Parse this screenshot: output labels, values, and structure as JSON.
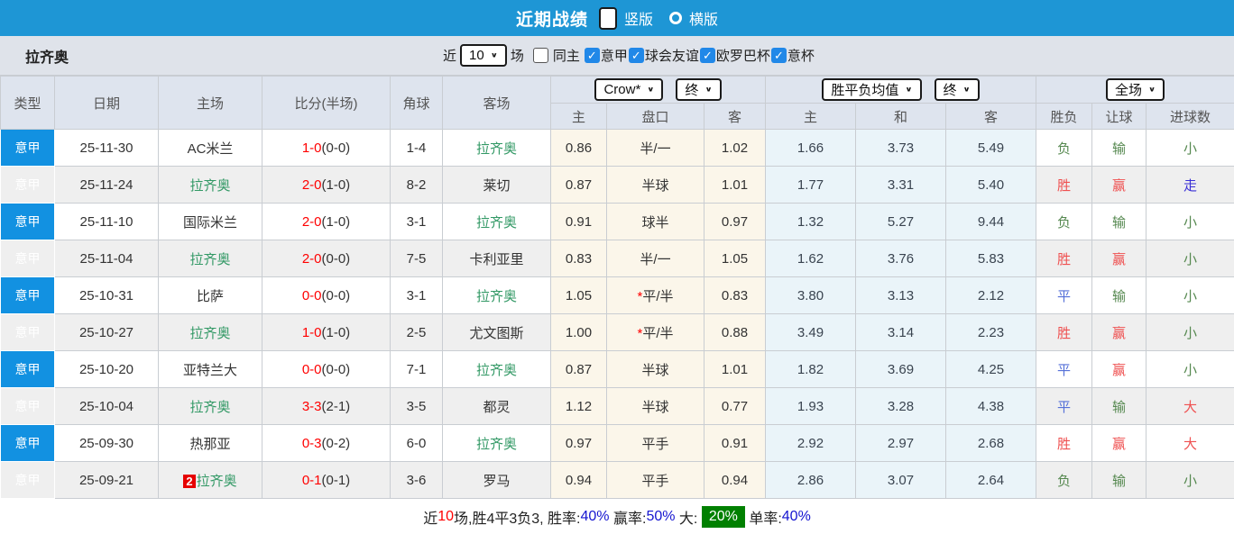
{
  "colors": {
    "topbar_blue": "#1e96d5",
    "type_column_blue": "#1291e1",
    "checkbox_blue": "#2188e8",
    "team_green": "#339966",
    "score_red": "#ff0000",
    "result_red": "#ef5050",
    "result_green": "#55884f",
    "result_blue": "#5570d8",
    "walk_blue": "#3a2fd6",
    "crown_col_bg": "#fbf6ea",
    "euro_col_bg": "#eaf4f9",
    "summary_badge_green": "#008000"
  },
  "title_bar": {
    "title": "近期战绩",
    "options": [
      {
        "label": "竖版",
        "selected": true
      },
      {
        "label": "横版",
        "selected": false
      }
    ]
  },
  "filter": {
    "team": "拉齐奥",
    "recent_label": "近",
    "recent_value": "10",
    "games_label": "场",
    "same_home": {
      "label": "同主",
      "checked": false
    },
    "leagues": [
      {
        "label": "意甲",
        "checked": true
      },
      {
        "label": "球会友谊",
        "checked": true
      },
      {
        "label": "欧罗巴杯",
        "checked": true
      },
      {
        "label": "意杯",
        "checked": true
      }
    ]
  },
  "table": {
    "main_headers": [
      "类型",
      "日期",
      "主场",
      "比分(半场)",
      "角球",
      "客场"
    ],
    "groups": [
      {
        "selects": [
          "Crow*",
          "终"
        ],
        "subs": [
          "主",
          "盘口",
          "客"
        ]
      },
      {
        "selects": [
          "胜平负均值",
          "终"
        ],
        "subs": [
          "主",
          "和",
          "客"
        ]
      },
      {
        "selects": [
          "全场"
        ],
        "subs": [
          "胜负",
          "让球",
          "进球数"
        ]
      }
    ],
    "rows": [
      {
        "league": "意甲",
        "date": "25-11-30",
        "home": {
          "name": "AC米兰",
          "highlight": false,
          "badge": ""
        },
        "score_full": "1-0",
        "score_half": "(0-0)",
        "corners": "1-4",
        "away": {
          "name": "拉齐奥",
          "highlight": true,
          "badge": ""
        },
        "crown": [
          "0.86",
          "半/一",
          "1.02"
        ],
        "handicap_star": false,
        "euro": [
          "1.66",
          "3.73",
          "5.49"
        ],
        "results": [
          {
            "t": "负",
            "c": "g"
          },
          {
            "t": "输",
            "c": "g"
          },
          {
            "t": "小",
            "c": "g"
          }
        ]
      },
      {
        "league": "意甲",
        "date": "25-11-24",
        "home": {
          "name": "拉齐奥",
          "highlight": true,
          "badge": ""
        },
        "score_full": "2-0",
        "score_half": "(1-0)",
        "corners": "8-2",
        "away": {
          "name": "莱切",
          "highlight": false,
          "badge": ""
        },
        "crown": [
          "0.87",
          "半球",
          "1.01"
        ],
        "handicap_star": false,
        "euro": [
          "1.77",
          "3.31",
          "5.40"
        ],
        "results": [
          {
            "t": "胜",
            "c": "r"
          },
          {
            "t": "赢",
            "c": "r"
          },
          {
            "t": "走",
            "c": "w"
          }
        ]
      },
      {
        "league": "意甲",
        "date": "25-11-10",
        "home": {
          "name": "国际米兰",
          "highlight": false,
          "badge": ""
        },
        "score_full": "2-0",
        "score_half": "(1-0)",
        "corners": "3-1",
        "away": {
          "name": "拉齐奥",
          "highlight": true,
          "badge": ""
        },
        "crown": [
          "0.91",
          "球半",
          "0.97"
        ],
        "handicap_star": false,
        "euro": [
          "1.32",
          "5.27",
          "9.44"
        ],
        "results": [
          {
            "t": "负",
            "c": "g"
          },
          {
            "t": "输",
            "c": "g"
          },
          {
            "t": "小",
            "c": "g"
          }
        ]
      },
      {
        "league": "意甲",
        "date": "25-11-04",
        "home": {
          "name": "拉齐奥",
          "highlight": true,
          "badge": ""
        },
        "score_full": "2-0",
        "score_half": "(0-0)",
        "corners": "7-5",
        "away": {
          "name": "卡利亚里",
          "highlight": false,
          "badge": ""
        },
        "crown": [
          "0.83",
          "半/一",
          "1.05"
        ],
        "handicap_star": false,
        "euro": [
          "1.62",
          "3.76",
          "5.83"
        ],
        "results": [
          {
            "t": "胜",
            "c": "r"
          },
          {
            "t": "赢",
            "c": "r"
          },
          {
            "t": "小",
            "c": "g"
          }
        ]
      },
      {
        "league": "意甲",
        "date": "25-10-31",
        "home": {
          "name": "比萨",
          "highlight": false,
          "badge": ""
        },
        "score_full": "0-0",
        "score_half": "(0-0)",
        "corners": "3-1",
        "away": {
          "name": "拉齐奥",
          "highlight": true,
          "badge": ""
        },
        "crown": [
          "1.05",
          "平/半",
          "0.83"
        ],
        "handicap_star": true,
        "euro": [
          "3.80",
          "3.13",
          "2.12"
        ],
        "results": [
          {
            "t": "平",
            "c": "b"
          },
          {
            "t": "输",
            "c": "g"
          },
          {
            "t": "小",
            "c": "g"
          }
        ]
      },
      {
        "league": "意甲",
        "date": "25-10-27",
        "home": {
          "name": "拉齐奥",
          "highlight": true,
          "badge": ""
        },
        "score_full": "1-0",
        "score_half": "(1-0)",
        "corners": "2-5",
        "away": {
          "name": "尤文图斯",
          "highlight": false,
          "badge": ""
        },
        "crown": [
          "1.00",
          "平/半",
          "0.88"
        ],
        "handicap_star": true,
        "euro": [
          "3.49",
          "3.14",
          "2.23"
        ],
        "results": [
          {
            "t": "胜",
            "c": "r"
          },
          {
            "t": "赢",
            "c": "r"
          },
          {
            "t": "小",
            "c": "g"
          }
        ]
      },
      {
        "league": "意甲",
        "date": "25-10-20",
        "home": {
          "name": "亚特兰大",
          "highlight": false,
          "badge": ""
        },
        "score_full": "0-0",
        "score_half": "(0-0)",
        "corners": "7-1",
        "away": {
          "name": "拉齐奥",
          "highlight": true,
          "badge": ""
        },
        "crown": [
          "0.87",
          "半球",
          "1.01"
        ],
        "handicap_star": false,
        "euro": [
          "1.82",
          "3.69",
          "4.25"
        ],
        "results": [
          {
            "t": "平",
            "c": "b"
          },
          {
            "t": "赢",
            "c": "r"
          },
          {
            "t": "小",
            "c": "g"
          }
        ]
      },
      {
        "league": "意甲",
        "date": "25-10-04",
        "home": {
          "name": "拉齐奥",
          "highlight": true,
          "badge": ""
        },
        "score_full": "3-3",
        "score_half": "(2-1)",
        "corners": "3-5",
        "away": {
          "name": "都灵",
          "highlight": false,
          "badge": ""
        },
        "crown": [
          "1.12",
          "半球",
          "0.77"
        ],
        "handicap_star": false,
        "euro": [
          "1.93",
          "3.28",
          "4.38"
        ],
        "results": [
          {
            "t": "平",
            "c": "b"
          },
          {
            "t": "输",
            "c": "g"
          },
          {
            "t": "大",
            "c": "r"
          }
        ]
      },
      {
        "league": "意甲",
        "date": "25-09-30",
        "home": {
          "name": "热那亚",
          "highlight": false,
          "badge": ""
        },
        "score_full": "0-3",
        "score_half": "(0-2)",
        "corners": "6-0",
        "away": {
          "name": "拉齐奥",
          "highlight": true,
          "badge": ""
        },
        "crown": [
          "0.97",
          "平手",
          "0.91"
        ],
        "handicap_star": false,
        "euro": [
          "2.92",
          "2.97",
          "2.68"
        ],
        "results": [
          {
            "t": "胜",
            "c": "r"
          },
          {
            "t": "赢",
            "c": "r"
          },
          {
            "t": "大",
            "c": "r"
          }
        ]
      },
      {
        "league": "意甲",
        "date": "25-09-21",
        "home": {
          "name": "拉齐奥",
          "highlight": true,
          "badge": "2"
        },
        "score_full": "0-1",
        "score_half": "(0-1)",
        "corners": "3-6",
        "away": {
          "name": "罗马",
          "highlight": false,
          "badge": ""
        },
        "crown": [
          "0.94",
          "平手",
          "0.94"
        ],
        "handicap_star": false,
        "euro": [
          "2.86",
          "3.07",
          "2.64"
        ],
        "results": [
          {
            "t": "负",
            "c": "g"
          },
          {
            "t": "输",
            "c": "g"
          },
          {
            "t": "小",
            "c": "g"
          }
        ]
      }
    ]
  },
  "summary": {
    "parts": [
      {
        "t": "近",
        "c": "k"
      },
      {
        "t": "10",
        "c": "r"
      },
      {
        "t": "场,胜4平3负3, 胜率:",
        "c": "k"
      },
      {
        "t": "40%",
        "c": "u"
      },
      {
        "t": " 赢率:",
        "c": "k"
      },
      {
        "t": "50%",
        "c": "u"
      },
      {
        "t": " 大: ",
        "c": "k"
      },
      {
        "t": "20%",
        "c": "badge"
      },
      {
        "t": " 单率:",
        "c": "k"
      },
      {
        "t": "40%",
        "c": "u"
      }
    ]
  }
}
